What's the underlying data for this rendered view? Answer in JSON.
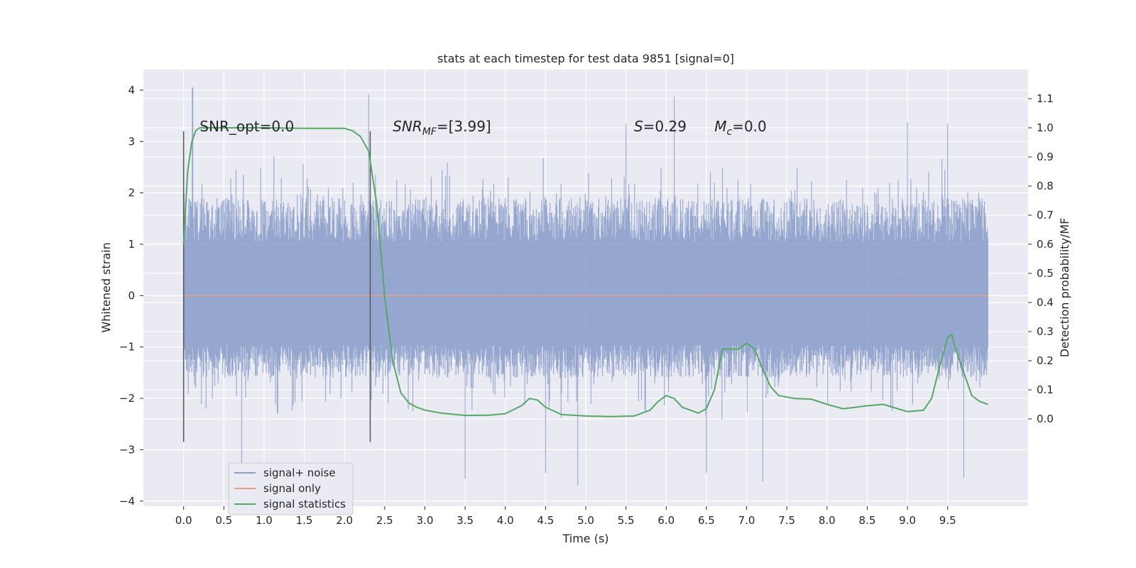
{
  "chart_data": {
    "type": "line",
    "title": "stats at each timestep for test data 9851 [signal=0]",
    "xlabel": "Time (s)",
    "ylabel": "Whitened strain",
    "ylabel_right": "Detection probability/MF",
    "xlim": [
      -0.5,
      10.5
    ],
    "ylim": [
      -4.1,
      4.4
    ],
    "ylim_right": [
      -0.3,
      1.2
    ],
    "grid": true,
    "x_ticks": [
      0.0,
      0.5,
      1.0,
      1.5,
      2.0,
      2.5,
      3.0,
      3.5,
      4.0,
      4.5,
      5.0,
      5.5,
      6.0,
      6.5,
      7.0,
      7.5,
      8.0,
      8.5,
      9.0,
      9.5
    ],
    "x_tick_labels": [
      "0.0",
      "0.5",
      "1.0",
      "1.5",
      "2.0",
      "2.5",
      "3.0",
      "3.5",
      "4.0",
      "4.5",
      "5.0",
      "5.5",
      "6.0",
      "6.5",
      "7.0",
      "7.5",
      "8.0",
      "8.5",
      "9.0",
      "9.5"
    ],
    "y_ticks": [
      4,
      3,
      2,
      1,
      0,
      -1,
      -2,
      -3,
      -4
    ],
    "y_tick_labels": [
      "4",
      "3",
      "2",
      "1",
      "0",
      "−1",
      "−2",
      "−3",
      "−4"
    ],
    "y_ticks_right": [
      1.1,
      1.0,
      0.9,
      0.8,
      0.7,
      0.6,
      0.5,
      0.4,
      0.3,
      0.2,
      0.1,
      0.0
    ],
    "y_tick_labels_right": [
      "1.1",
      "1.0",
      "0.9",
      "0.8",
      "0.7",
      "0.6",
      "0.5",
      "0.4",
      "0.3",
      "0.2",
      "0.1",
      "0.0"
    ],
    "series": [
      {
        "name": "signal+ noise",
        "color": "#8da0cb",
        "axis": "left",
        "style": "noise",
        "x_range": [
          0.0,
          10.0
        ],
        "typical_max": 1.9,
        "typical_min": -1.6,
        "x_peaks": [
          [
            0.11,
            4.05
          ],
          [
            2.3,
            3.92
          ],
          [
            6.1,
            3.87
          ],
          [
            5.5,
            3.35
          ],
          [
            9.0,
            3.38
          ],
          [
            9.5,
            3.35
          ]
        ],
        "x_troughs": [
          [
            0.72,
            -3.3
          ],
          [
            3.5,
            -3.57
          ],
          [
            4.5,
            -3.45
          ],
          [
            4.9,
            -3.7
          ],
          [
            6.5,
            -3.45
          ],
          [
            7.2,
            -3.62
          ],
          [
            9.7,
            -3.55
          ]
        ]
      },
      {
        "name": "signal only",
        "color": "#e5a084",
        "axis": "left",
        "x": [
          0.0,
          10.0
        ],
        "y": [
          0.0,
          0.0
        ]
      },
      {
        "name": "signal statistics",
        "color": "#55a868",
        "axis": "right",
        "x": [
          0.0,
          0.05,
          0.1,
          0.15,
          0.2,
          0.3,
          0.5,
          1.0,
          1.5,
          2.0,
          2.1,
          2.2,
          2.3,
          2.4,
          2.5,
          2.6,
          2.7,
          2.8,
          2.9,
          3.0,
          3.2,
          3.5,
          3.8,
          4.0,
          4.2,
          4.3,
          4.4,
          4.5,
          4.7,
          5.0,
          5.3,
          5.6,
          5.8,
          5.9,
          6.0,
          6.1,
          6.2,
          6.4,
          6.5,
          6.6,
          6.7,
          6.8,
          6.9,
          7.0,
          7.1,
          7.2,
          7.3,
          7.4,
          7.6,
          7.8,
          8.0,
          8.2,
          8.5,
          8.7,
          9.0,
          9.2,
          9.3,
          9.4,
          9.5,
          9.55,
          9.6,
          9.7,
          9.8,
          9.9,
          10.0
        ],
        "y": [
          0.6,
          0.85,
          0.95,
          0.99,
          1.0,
          1.0,
          1.0,
          1.0,
          0.998,
          0.998,
          0.99,
          0.97,
          0.92,
          0.74,
          0.42,
          0.2,
          0.09,
          0.055,
          0.04,
          0.03,
          0.02,
          0.012,
          0.013,
          0.018,
          0.045,
          0.07,
          0.065,
          0.04,
          0.015,
          0.01,
          0.008,
          0.01,
          0.03,
          0.06,
          0.08,
          0.07,
          0.04,
          0.02,
          0.035,
          0.1,
          0.24,
          0.24,
          0.24,
          0.26,
          0.24,
          0.17,
          0.11,
          0.08,
          0.07,
          0.068,
          0.05,
          0.035,
          0.045,
          0.05,
          0.025,
          0.03,
          0.07,
          0.18,
          0.28,
          0.29,
          0.24,
          0.16,
          0.08,
          0.06,
          0.05
        ]
      }
    ],
    "vlines": [
      {
        "x": 0.0,
        "y_range": [
          -2.85,
          3.2
        ],
        "color": "#555555"
      },
      {
        "x": 2.32,
        "y_range": [
          -2.85,
          3.2
        ],
        "color": "#555555"
      }
    ],
    "annotations": [
      {
        "id": "snr-opt",
        "text": "SNR_opt=0.0",
        "x": 0.2,
        "y": 3.2
      },
      {
        "id": "snr-mf",
        "text_main": "SNR",
        "text_sub": "MF",
        "text_rest": "=[3.99]",
        "x": 2.6,
        "y": 3.2
      },
      {
        "id": "s-stat",
        "text_main": "S",
        "text_rest": "=0.29",
        "x": 5.6,
        "y": 3.2
      },
      {
        "id": "mc",
        "text_main": "M",
        "text_sub": "c",
        "text_rest": "=0.0",
        "x": 6.6,
        "y": 3.2
      }
    ],
    "legend": {
      "placement": "lower-left",
      "items": [
        "signal+ noise",
        "signal only",
        "signal statistics"
      ]
    }
  }
}
